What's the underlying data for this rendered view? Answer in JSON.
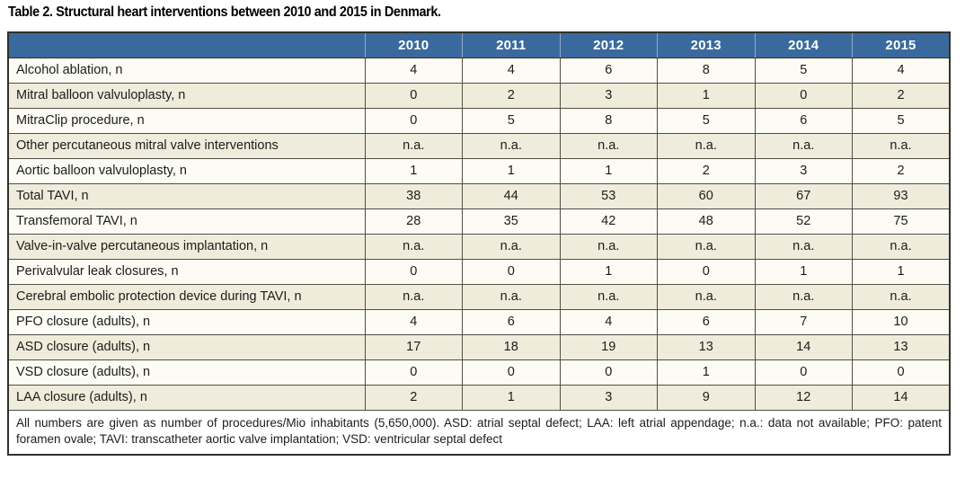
{
  "title": "Table 2. Structural heart interventions between 2010 and 2015 in Denmark.",
  "table": {
    "columns": [
      "2010",
      "2011",
      "2012",
      "2013",
      "2014",
      "2015"
    ],
    "rows": [
      {
        "label": "Alcohol ablation, n",
        "values": [
          "4",
          "4",
          "6",
          "8",
          "5",
          "4"
        ]
      },
      {
        "label": "Mitral balloon valvuloplasty, n",
        "values": [
          "0",
          "2",
          "3",
          "1",
          "0",
          "2"
        ]
      },
      {
        "label": "MitraClip procedure, n",
        "values": [
          "0",
          "5",
          "8",
          "5",
          "6",
          "5"
        ]
      },
      {
        "label": "Other percutaneous mitral valve interventions",
        "values": [
          "n.a.",
          "n.a.",
          "n.a.",
          "n.a.",
          "n.a.",
          "n.a."
        ]
      },
      {
        "label": "Aortic balloon valvuloplasty, n",
        "values": [
          "1",
          "1",
          "1",
          "2",
          "3",
          "2"
        ]
      },
      {
        "label": "Total TAVI, n",
        "values": [
          "38",
          "44",
          "53",
          "60",
          "67",
          "93"
        ]
      },
      {
        "label": "Transfemoral TAVI, n",
        "values": [
          "28",
          "35",
          "42",
          "48",
          "52",
          "75"
        ]
      },
      {
        "label": "Valve-in-valve percutaneous implantation, n",
        "values": [
          "n.a.",
          "n.a.",
          "n.a.",
          "n.a.",
          "n.a.",
          "n.a."
        ]
      },
      {
        "label": "Perivalvular leak closures, n",
        "values": [
          "0",
          "0",
          "1",
          "0",
          "1",
          "1"
        ]
      },
      {
        "label": "Cerebral embolic protection device during TAVI, n",
        "values": [
          "n.a.",
          "n.a.",
          "n.a.",
          "n.a.",
          "n.a.",
          "n.a."
        ]
      },
      {
        "label": "PFO closure (adults), n",
        "values": [
          "4",
          "6",
          "4",
          "6",
          "7",
          "10"
        ]
      },
      {
        "label": "ASD closure (adults), n",
        "values": [
          "17",
          "18",
          "19",
          "13",
          "14",
          "13"
        ]
      },
      {
        "label": "VSD closure (adults), n",
        "values": [
          "0",
          "0",
          "0",
          "1",
          "0",
          "0"
        ]
      },
      {
        "label": "LAA closure (adults), n",
        "values": [
          "2",
          "1",
          "3",
          "9",
          "12",
          "14"
        ]
      }
    ],
    "footnote": "All numbers are given as number of procedures/Mio inhabitants (5,650,000). ASD: atrial septal defect; LAA: left atrial appendage; n.a.: data not available; PFO: patent foramen ovale; TAVI: transcatheter aortic valve implantation; VSD: ventricular septal defect"
  },
  "colors": {
    "header_bg": "#3a6a9d",
    "row_white": "#fcfbf4",
    "row_cream": "#f0ecdb",
    "border_outer": "#31312b",
    "border_inner": "#4f4f47",
    "header_separator": "#8fa9c7"
  }
}
